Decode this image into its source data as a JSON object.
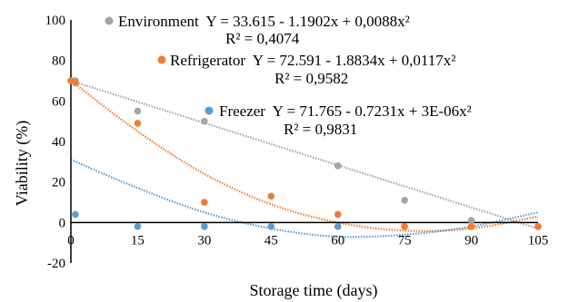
{
  "chart_data": {
    "type": "scatter",
    "title": "",
    "xlabel": "Storage time (days)",
    "ylabel": "Viability (%)",
    "xlim": [
      0,
      105
    ],
    "ylim": [
      -20,
      100
    ],
    "xticks": [
      0,
      15,
      30,
      45,
      60,
      75,
      90,
      105
    ],
    "yticks": [
      -20,
      0,
      20,
      40,
      60,
      80,
      100
    ],
    "grid": false,
    "legend": "inline-annotations",
    "series": [
      {
        "name": "Environment",
        "color": "#a5a5a5",
        "marker": "circle",
        "trendline": "polynomial-2",
        "equation": "Y = 33.615 - 1.1902x + 0,0088x²",
        "r2": "R² = 0,4074",
        "points": [
          [
            0,
            70
          ],
          [
            1,
            70
          ],
          [
            15,
            55
          ],
          [
            30,
            50
          ],
          [
            60,
            28
          ],
          [
            75,
            11
          ],
          [
            90,
            1
          ],
          [
            105,
            -2
          ]
        ],
        "fit_line": [
          [
            0,
            70
          ],
          [
            105,
            -3
          ]
        ]
      },
      {
        "name": "Refrigerator",
        "color": "#ed7d31",
        "marker": "circle",
        "trendline": "polynomial-2",
        "equation": "Y = 72.591 - 1.8834x + 0,0117x²",
        "r2": "R² = 0,9582",
        "points": [
          [
            0,
            70
          ],
          [
            1,
            69
          ],
          [
            15,
            49
          ],
          [
            30,
            10
          ],
          [
            45,
            13
          ],
          [
            60,
            4
          ],
          [
            75,
            -2
          ],
          [
            90,
            -2
          ],
          [
            105,
            -2
          ]
        ],
        "fit_line": [
          [
            0,
            70
          ],
          [
            15,
            45
          ],
          [
            30,
            24
          ],
          [
            45,
            9
          ],
          [
            60,
            0
          ],
          [
            75,
            -4
          ],
          [
            90,
            -3
          ],
          [
            105,
            3
          ]
        ]
      },
      {
        "name": "Freezer",
        "color": "#5b9bd5",
        "marker": "circle",
        "trendline": "polynomial-2",
        "equation": "Y = 71.765 - 0.7231x + 3E-06x²",
        "r2": "R² = 0,9831",
        "points": [
          [
            1,
            4
          ],
          [
            15,
            -2
          ],
          [
            30,
            -2
          ],
          [
            45,
            -2
          ],
          [
            60,
            -2
          ]
        ],
        "fit_line": [
          [
            0,
            31
          ],
          [
            15,
            17
          ],
          [
            30,
            5
          ],
          [
            45,
            -3
          ],
          [
            60,
            -7
          ],
          [
            75,
            -6
          ],
          [
            90,
            -2
          ],
          [
            105,
            5
          ]
        ]
      }
    ]
  }
}
